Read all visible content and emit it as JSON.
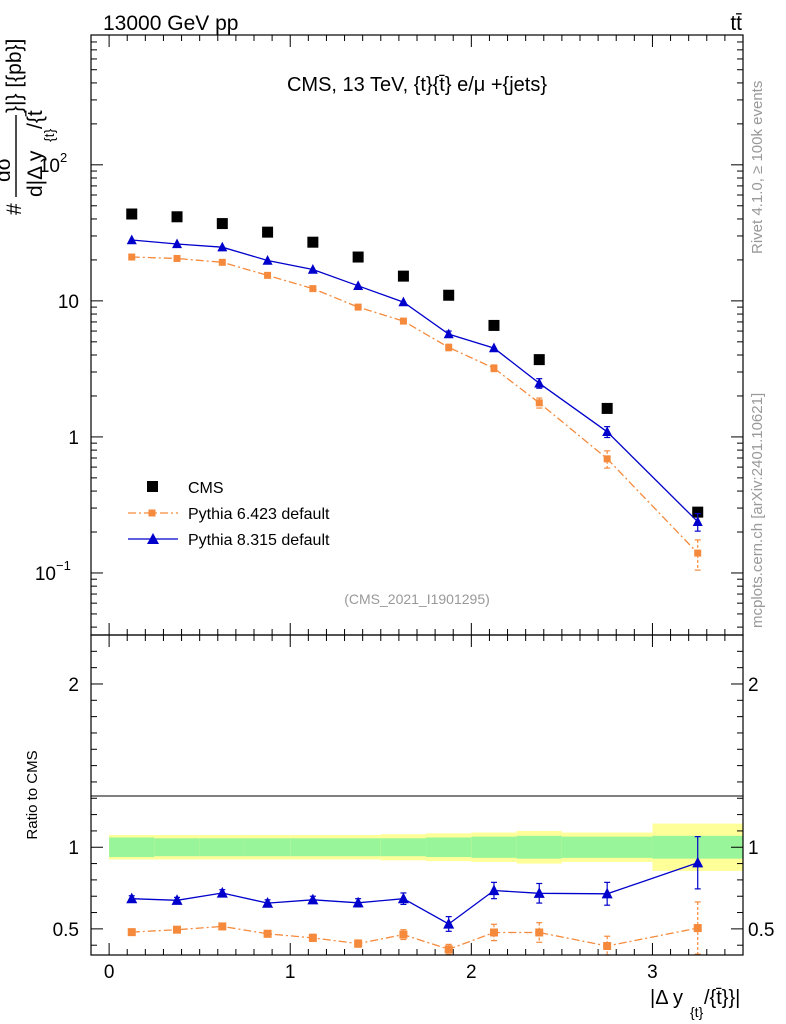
{
  "header": {
    "left": "13000 GeV pp",
    "right": "tt̄"
  },
  "side_labels": {
    "rivet": "Rivet 4.1.0, ≥ 100k events",
    "mcplots": "mcplots.cern.ch [arXiv:2401.10621]"
  },
  "chart_data": [
    {
      "type": "scatter",
      "panel": "main",
      "title": "CMS, 13 TeV, {t}{t̄} e/μ +{jets}",
      "analysis_id": "(CMS_2021_I1901295)",
      "ylabel": "# dσ / d|Δ y_{t/t̄}| [{pb}]",
      "ylabel_parts": {
        "hash": "#",
        "numerator": "dσ",
        "denominator": "d|Δ y",
        "sub": "{t}",
        "tail": "/{t̄",
        "unit": "}|} [{pb}]"
      },
      "yscale": "log",
      "ylim": [
        0.035,
        900
      ],
      "xlim": [
        -0.1,
        3.5
      ],
      "y_tick_labels": [
        {
          "label": "10",
          "sup": "−1",
          "value": 0.1
        },
        {
          "label": "1",
          "value": 1
        },
        {
          "label": "10",
          "value": 10
        },
        {
          "label": "10",
          "sup": "2",
          "value": 100
        }
      ],
      "x": [
        0.125,
        0.375,
        0.625,
        0.875,
        1.125,
        1.375,
        1.625,
        1.875,
        2.125,
        2.375,
        2.75,
        3.25
      ],
      "series": [
        {
          "name": "CMS",
          "marker": "square",
          "color": "#000000",
          "values": [
            43.5,
            41.5,
            37.0,
            32.0,
            27.0,
            21.0,
            15.2,
            11.0,
            6.6,
            3.7,
            1.62,
            0.28
          ]
        },
        {
          "name": "Pythia 6.423 default",
          "marker": "square",
          "line": "dash-dot",
          "color": "#f58a3c",
          "values": [
            21.0,
            20.5,
            19.2,
            15.4,
            12.3,
            9.0,
            7.1,
            4.55,
            3.2,
            1.78,
            0.69,
            0.14
          ],
          "errors": [
            0.5,
            0.5,
            0.5,
            0.4,
            0.4,
            0.3,
            0.3,
            0.25,
            0.18,
            0.15,
            0.1,
            0.035
          ]
        },
        {
          "name": "Pythia 8.315 default",
          "marker": "triangle",
          "line": "solid",
          "color": "#0000cc",
          "values": [
            28.0,
            26.2,
            24.8,
            19.8,
            17.0,
            12.9,
            9.8,
            5.7,
            4.5,
            2.48,
            1.09,
            0.238
          ],
          "errors": [
            0.6,
            0.6,
            0.6,
            0.5,
            0.5,
            0.4,
            0.35,
            0.3,
            0.2,
            0.2,
            0.1,
            0.035
          ]
        }
      ],
      "legend": [
        "CMS",
        "Pythia 6.423 default",
        "Pythia 8.315 default"
      ]
    },
    {
      "type": "line",
      "panel": "ratio",
      "ylabel": "Ratio to CMS",
      "xlabel": "|Δ y_{t}/{t̄}}|",
      "xlabel_parts": {
        "pre": "|Δ y",
        "sub": "{t}",
        "post": "/{t̄}}|"
      },
      "ylim": [
        0.34,
        2.3
      ],
      "xlim": [
        -0.1,
        3.5
      ],
      "x_ticks": [
        0,
        1,
        2,
        3
      ],
      "x_tick_labels": [
        "0",
        "1",
        "2",
        "3"
      ],
      "y_ticks": [
        0.5,
        1,
        2
      ],
      "y_tick_labels": [
        "0.5",
        "1",
        "2"
      ],
      "bin_edges": [
        0,
        0.25,
        0.5,
        0.75,
        1.0,
        1.25,
        1.5,
        1.75,
        2.0,
        2.25,
        2.5,
        3.0,
        3.5
      ],
      "band_inner": [
        0.06,
        0.055,
        0.055,
        0.055,
        0.055,
        0.055,
        0.055,
        0.06,
        0.065,
        0.07,
        0.065,
        0.07
      ],
      "band_outer": [
        0.075,
        0.075,
        0.075,
        0.075,
        0.075,
        0.075,
        0.08,
        0.085,
        0.09,
        0.1,
        0.09,
        0.145
      ],
      "x": [
        0.125,
        0.375,
        0.625,
        0.875,
        1.125,
        1.375,
        1.625,
        1.875,
        2.125,
        2.375,
        2.75,
        3.25
      ],
      "series": [
        {
          "name": "Pythia 6.423 default",
          "marker": "square",
          "line": "dash-dot",
          "color": "#f58a3c",
          "values": [
            0.48,
            0.495,
            0.515,
            0.47,
            0.445,
            0.41,
            0.465,
            0.375,
            0.478,
            0.478,
            0.395,
            0.505
          ],
          "errors": [
            0.018,
            0.018,
            0.02,
            0.02,
            0.022,
            0.022,
            0.03,
            0.03,
            0.05,
            0.06,
            0.06,
            0.16
          ]
        },
        {
          "name": "Pythia 8.315 default",
          "marker": "triangle",
          "line": "solid",
          "color": "#0000cc",
          "values": [
            0.685,
            0.675,
            0.72,
            0.658,
            0.678,
            0.66,
            0.685,
            0.53,
            0.735,
            0.718,
            0.715,
            0.905
          ],
          "errors": [
            0.018,
            0.018,
            0.02,
            0.02,
            0.022,
            0.025,
            0.035,
            0.045,
            0.05,
            0.06,
            0.07,
            0.16
          ]
        }
      ]
    }
  ]
}
